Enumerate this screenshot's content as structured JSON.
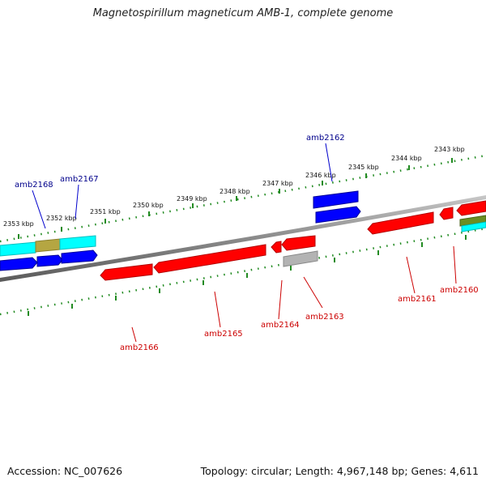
{
  "title": "Magnetospirillum magneticum AMB-1, complete genome",
  "accession_label": "Accession: NC_007626",
  "topology_label": "Topology: circular; Length: 4,967,148 bp; Genes: 4,611",
  "colors": {
    "forward_gene": "#0000ff",
    "reverse_gene": "#ff0000",
    "label_forward": "#00008b",
    "label_reverse": "#cc0000",
    "backbone": "#808080",
    "ruler_tick": "#228b22",
    "cyan_feature": "#00ffff",
    "khaki_feature": "#b5a642",
    "olive_feature": "#6b8e23",
    "grey_feature": "#b3b3b3"
  },
  "kbp_ticks": [
    "2353 kbp",
    "2352 kbp",
    "2351 kbp",
    "2350 kbp",
    "2349 kbp",
    "2348 kbp",
    "2347 kbp",
    "2346 kbp",
    "2345 kbp",
    "2344 kbp",
    "2343 kbp"
  ],
  "gene_labels": {
    "forward": [
      "amb2168",
      "amb2167",
      "amb2162"
    ],
    "reverse": [
      "amb2166",
      "amb2165",
      "amb2164",
      "amb2163",
      "amb2161",
      "amb2160"
    ]
  }
}
